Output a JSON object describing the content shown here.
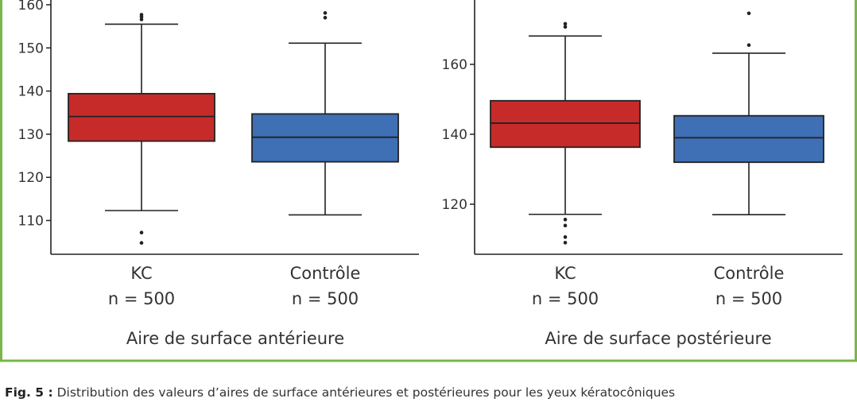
{
  "chart_data": [
    {
      "type": "box",
      "title": "Aire de surface antérieure",
      "ylim": [
        103,
        161
      ],
      "yticks": [
        110,
        120,
        130,
        140,
        150,
        160
      ],
      "categories": [
        "KC",
        "Contrôle"
      ],
      "n_labels": [
        "n = 500",
        "n = 500"
      ],
      "boxes": [
        {
          "category": "KC",
          "color": "#c62b2a",
          "whisker_low": 112.3,
          "q1": 128.4,
          "median": 134.1,
          "q3": 139.4,
          "whisker_high": 155.5,
          "outliers": [
            104.8,
            107.2,
            156.6,
            157.2,
            157.7
          ]
        },
        {
          "category": "Contrôle",
          "color": "#3f6fb5",
          "whisker_low": 111.3,
          "q1": 123.6,
          "median": 129.3,
          "q3": 134.7,
          "whisker_high": 151.1,
          "outliers": [
            157.0,
            158.1
          ]
        }
      ]
    },
    {
      "type": "box",
      "title": "Aire de surface postérieure",
      "ylim": [
        107,
        180
      ],
      "yticks": [
        120,
        140,
        160
      ],
      "categories": [
        "KC",
        "Contrôle"
      ],
      "n_labels": [
        "n = 500",
        "n = 500"
      ],
      "boxes": [
        {
          "category": "KC",
          "color": "#c62b2a",
          "whisker_low": 117.1,
          "q1": 136.3,
          "median": 143.2,
          "q3": 149.6,
          "whisker_high": 168.1,
          "outliers": [
            109.0,
            110.6,
            113.9,
            115.6,
            170.7,
            171.6
          ]
        },
        {
          "category": "Contrôle",
          "color": "#3f6fb5",
          "whisker_low": 117.0,
          "q1": 132.0,
          "median": 139.0,
          "q3": 145.3,
          "whisker_high": 163.2,
          "outliers": [
            165.5,
            174.6
          ]
        }
      ]
    }
  ],
  "caption": {
    "label": "Fig. 5 :",
    "text": " Distribution des valeurs d’aires de surface antérieures et postérieures pour les yeux kératocôniques"
  },
  "colors": {
    "frame": "#7ab648",
    "kc": "#c62b2a",
    "control": "#3f6fb5"
  }
}
